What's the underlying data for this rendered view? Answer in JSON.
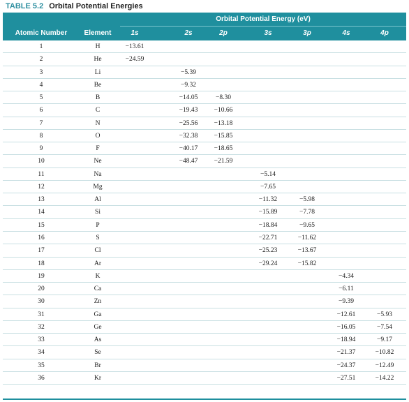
{
  "table": {
    "number": "TABLE 5.2",
    "title": "Orbital Potential Energies",
    "super_header": "Orbital Potential Energy (eV)",
    "headers": {
      "atomic_number": "Atomic Number",
      "element": "Element",
      "o1s": "1s",
      "o2s": "2s",
      "o2p": "2p",
      "o3s": "3s",
      "o3p": "3p",
      "o4s": "4s",
      "o4p": "4p"
    },
    "rows": [
      {
        "z": "1",
        "el": "H",
        "s1": "−13.61",
        "s2": "",
        "p2": "",
        "s3": "",
        "p3": "",
        "s4": "",
        "p4": ""
      },
      {
        "z": "2",
        "el": "He",
        "s1": "−24.59",
        "s2": "",
        "p2": "",
        "s3": "",
        "p3": "",
        "s4": "",
        "p4": ""
      },
      {
        "z": "3",
        "el": "Li",
        "s1": "",
        "s2": "−5.39",
        "p2": "",
        "s3": "",
        "p3": "",
        "s4": "",
        "p4": ""
      },
      {
        "z": "4",
        "el": "Be",
        "s1": "",
        "s2": "−9.32",
        "p2": "",
        "s3": "",
        "p3": "",
        "s4": "",
        "p4": ""
      },
      {
        "z": "5",
        "el": "B",
        "s1": "",
        "s2": "−14.05",
        "p2": "−8.30",
        "s3": "",
        "p3": "",
        "s4": "",
        "p4": ""
      },
      {
        "z": "6",
        "el": "C",
        "s1": "",
        "s2": "−19.43",
        "p2": "−10.66",
        "s3": "",
        "p3": "",
        "s4": "",
        "p4": ""
      },
      {
        "z": "7",
        "el": "N",
        "s1": "",
        "s2": "−25.56",
        "p2": "−13.18",
        "s3": "",
        "p3": "",
        "s4": "",
        "p4": ""
      },
      {
        "z": "8",
        "el": "O",
        "s1": "",
        "s2": "−32.38",
        "p2": "−15.85",
        "s3": "",
        "p3": "",
        "s4": "",
        "p4": ""
      },
      {
        "z": "9",
        "el": "F",
        "s1": "",
        "s2": "−40.17",
        "p2": "−18.65",
        "s3": "",
        "p3": "",
        "s4": "",
        "p4": ""
      },
      {
        "z": "10",
        "el": "Ne",
        "s1": "",
        "s2": "−48.47",
        "p2": "−21.59",
        "s3": "",
        "p3": "",
        "s4": "",
        "p4": ""
      },
      {
        "z": "11",
        "el": "Na",
        "s1": "",
        "s2": "",
        "p2": "",
        "s3": "−5.14",
        "p3": "",
        "s4": "",
        "p4": ""
      },
      {
        "z": "12",
        "el": "Mg",
        "s1": "",
        "s2": "",
        "p2": "",
        "s3": "−7.65",
        "p3": "",
        "s4": "",
        "p4": ""
      },
      {
        "z": "13",
        "el": "Al",
        "s1": "",
        "s2": "",
        "p2": "",
        "s3": "−11.32",
        "p3": "−5.98",
        "s4": "",
        "p4": ""
      },
      {
        "z": "14",
        "el": "Si",
        "s1": "",
        "s2": "",
        "p2": "",
        "s3": "−15.89",
        "p3": "−7.78",
        "s4": "",
        "p4": ""
      },
      {
        "z": "15",
        "el": "P",
        "s1": "",
        "s2": "",
        "p2": "",
        "s3": "−18.84",
        "p3": "−9.65",
        "s4": "",
        "p4": ""
      },
      {
        "z": "16",
        "el": "S",
        "s1": "",
        "s2": "",
        "p2": "",
        "s3": "−22.71",
        "p3": "−11.62",
        "s4": "",
        "p4": ""
      },
      {
        "z": "17",
        "el": "Cl",
        "s1": "",
        "s2": "",
        "p2": "",
        "s3": "−25.23",
        "p3": "−13.67",
        "s4": "",
        "p4": ""
      },
      {
        "z": "18",
        "el": "Ar",
        "s1": "",
        "s2": "",
        "p2": "",
        "s3": "−29.24",
        "p3": "−15.82",
        "s4": "",
        "p4": ""
      },
      {
        "z": "19",
        "el": "K",
        "s1": "",
        "s2": "",
        "p2": "",
        "s3": "",
        "p3": "",
        "s4": "−4.34",
        "p4": ""
      },
      {
        "z": "20",
        "el": "Ca",
        "s1": "",
        "s2": "",
        "p2": "",
        "s3": "",
        "p3": "",
        "s4": "−6.11",
        "p4": ""
      },
      {
        "z": "30",
        "el": "Zn",
        "s1": "",
        "s2": "",
        "p2": "",
        "s3": "",
        "p3": "",
        "s4": "−9.39",
        "p4": ""
      },
      {
        "z": "31",
        "el": "Ga",
        "s1": "",
        "s2": "",
        "p2": "",
        "s3": "",
        "p3": "",
        "s4": "−12.61",
        "p4": "−5.93"
      },
      {
        "z": "32",
        "el": "Ge",
        "s1": "",
        "s2": "",
        "p2": "",
        "s3": "",
        "p3": "",
        "s4": "−16.05",
        "p4": "−7.54"
      },
      {
        "z": "33",
        "el": "As",
        "s1": "",
        "s2": "",
        "p2": "",
        "s3": "",
        "p3": "",
        "s4": "−18.94",
        "p4": "−9.17"
      },
      {
        "z": "34",
        "el": "Se",
        "s1": "",
        "s2": "",
        "p2": "",
        "s3": "",
        "p3": "",
        "s4": "−21.37",
        "p4": "−10.82"
      },
      {
        "z": "35",
        "el": "Br",
        "s1": "",
        "s2": "",
        "p2": "",
        "s3": "",
        "p3": "",
        "s4": "−24.37",
        "p4": "−12.49"
      },
      {
        "z": "36",
        "el": "Kr",
        "s1": "",
        "s2": "",
        "p2": "",
        "s3": "",
        "p3": "",
        "s4": "−27.51",
        "p4": "−14.22"
      }
    ]
  },
  "colors": {
    "header_bg": "#1f8f9e",
    "title_number": "#2e8fa0"
  }
}
